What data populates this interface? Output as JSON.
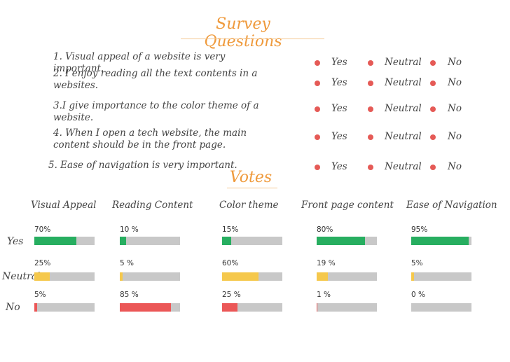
{
  "survey_title": "Survey Questions",
  "votes_title": "Votes",
  "colors": {
    "yes": "#27ae60",
    "neutral": "#f5c84c",
    "no": "#eb5757",
    "track": "#c8c8c8",
    "dot": "#e55a56",
    "accent": "#ef9a3c"
  },
  "questions": [
    {
      "text": "1. Visual appeal of a website is very important."
    },
    {
      "text": "2. I enjoy reading all the text contents in a websites."
    },
    {
      "text": "3.I give importance to the color theme of a website."
    },
    {
      "text": "4. When I open a tech website, the main content should be in the front page."
    },
    {
      "text": "5. Ease of navigation is very important."
    }
  ],
  "options": [
    "Yes",
    "Neutral",
    "No"
  ],
  "row_labels": [
    "Yes",
    "Neutral",
    "No"
  ],
  "columns": [
    {
      "name": "Visual Appeal",
      "values": [
        {
          "label": "70%",
          "value": 70
        },
        {
          "label": "25%",
          "value": 25
        },
        {
          "label": "5%",
          "value": 5
        }
      ]
    },
    {
      "name": "Reading Content",
      "values": [
        {
          "label": "10 %",
          "value": 10
        },
        {
          "label": "5 %",
          "value": 5
        },
        {
          "label": "85 %",
          "value": 85
        }
      ]
    },
    {
      "name": "Color theme",
      "values": [
        {
          "label": "15%",
          "value": 15
        },
        {
          "label": "60%",
          "value": 60
        },
        {
          "label": "25 %",
          "value": 25
        }
      ]
    },
    {
      "name": "Front page content",
      "values": [
        {
          "label": "80%",
          "value": 80
        },
        {
          "label": "19 %",
          "value": 19
        },
        {
          "label": "1 %",
          "value": 1
        }
      ]
    },
    {
      "name": "Ease of Navigation",
      "values": [
        {
          "label": "95%",
          "value": 95
        },
        {
          "label": "5%",
          "value": 5
        },
        {
          "label": "0 %",
          "value": 0
        }
      ]
    }
  ]
}
